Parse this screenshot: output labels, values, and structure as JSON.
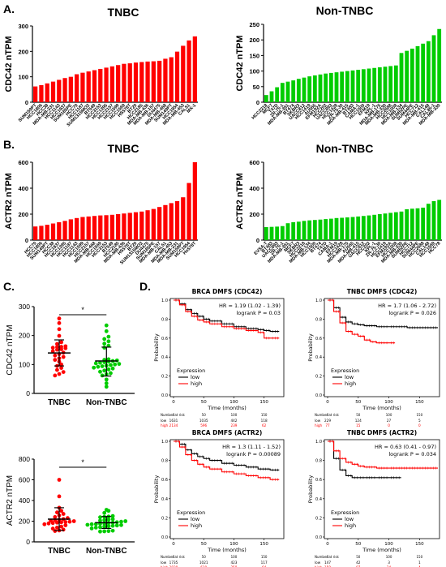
{
  "panels": {
    "A": "A.",
    "B": "B.",
    "C": "C.",
    "D": "D."
  },
  "colors": {
    "tnbc": "#ff0000",
    "non_tnbc": "#00cc00",
    "km_low": "#000000",
    "km_high": "#ff0000"
  },
  "chart_data": [
    {
      "id": "A-tnbc",
      "type": "bar",
      "title": "TNBC",
      "ylabel": "CDC42 nTPM",
      "ylim": [
        0,
        300
      ],
      "yticks": [
        0,
        100,
        200,
        300
      ],
      "color": "#ff0000",
      "categories": [
        "SUM159PT",
        "HCC1806",
        "HCC38",
        "MDA-MB-231",
        "HCC1143",
        "HCC1937",
        "SUM185PE",
        "HCC70",
        "HCC1187",
        "SUM1315MO2",
        "BT549",
        "HCC3153",
        "HCC1395",
        "HCC2157",
        "HCC1599",
        "HCC1569",
        "HS578T",
        "BT20",
        "HCC2185",
        "MDA-MB-436",
        "MDA-MB-157",
        "DU4475",
        "MDA-MB-468",
        "SUM149PT",
        "HCC1954",
        "MDA-MB-453",
        "CAL51",
        "MX-1"
      ],
      "values": [
        62,
        67,
        74,
        81,
        88,
        95,
        100,
        110,
        116,
        121,
        126,
        131,
        136,
        141,
        146,
        151,
        153,
        156,
        158,
        160,
        161,
        163,
        171,
        177,
        199,
        222,
        243,
        259
      ]
    },
    {
      "id": "A-nontnbc",
      "type": "bar",
      "title": "Non-TNBC",
      "ylabel": "CDC42 nTPM",
      "ylim": [
        0,
        250
      ],
      "yticks": [
        0,
        50,
        100,
        150,
        200,
        250
      ],
      "color": "#00cc00",
      "categories": [
        "HCC2218",
        "MCF7",
        "T47D",
        "ZR-75-1",
        "MDA-MB-361",
        "BT474",
        "SKBR3",
        "UACC812",
        "HCC1419",
        "AU565",
        "EFM192A",
        "HCC202",
        "UACC893",
        "HCC1428",
        "ZR-75-30",
        "MDA-MB-415",
        "BT483",
        "CAMA-1",
        "HCC1500",
        "EFM19",
        "KPL-1",
        "MDA-MB-175",
        "MDA-MB-330",
        "HCC2688",
        "HCC1008",
        "MDA-MB-134",
        "SUM52PE",
        "SUM44PE",
        "HCC712",
        "MDA-MB-415",
        "CAL148",
        "CAL85-1",
        "MDA-MB-330"
      ],
      "values": [
        23,
        35,
        48,
        62,
        66,
        70,
        75,
        79,
        83,
        86,
        89,
        92,
        94,
        96,
        98,
        100,
        102,
        104,
        106,
        108,
        110,
        112,
        114,
        116,
        118,
        158,
        165,
        172,
        180,
        188,
        196,
        215,
        235
      ]
    },
    {
      "id": "B-tnbc",
      "type": "bar",
      "title": "TNBC",
      "ylabel": "ACTR2 nTPM",
      "ylim": [
        0,
        600
      ],
      "yticks": [
        0,
        200,
        400,
        600
      ],
      "color": "#ff0000",
      "categories": [
        "HCC70",
        "HCC1806",
        "SUM149PT",
        "HCC38",
        "HCC1937",
        "HCC1395",
        "HCC1187",
        "HCC1143",
        "HCC1599",
        "HCC2157",
        "MDA-MB-468",
        "HCC1569",
        "HCC3153",
        "BT549",
        "HCC2185",
        "MDA-MB-436",
        "HS578T",
        "BT20",
        "SUM1315MO2",
        "DU4475",
        "SUM185PE",
        "MDA-MB-157",
        "CAL51",
        "MDA-MB-453",
        "MDA-MB-231",
        "SUM159PT",
        "HCC1954",
        "Hs578T"
      ],
      "values": [
        105,
        110,
        118,
        128,
        138,
        148,
        160,
        170,
        178,
        182,
        186,
        190,
        192,
        195,
        200,
        205,
        210,
        215,
        220,
        230,
        240,
        255,
        270,
        285,
        300,
        330,
        440,
        600
      ]
    },
    {
      "id": "B-nontnbc",
      "type": "bar",
      "title": "Non-TNBC",
      "ylabel": "ACTR2 nTPM",
      "ylim": [
        0,
        600
      ],
      "yticks": [
        0,
        200,
        400,
        600
      ],
      "color": "#00cc00",
      "categories": [
        "EVSA-T",
        "BT483",
        "UACC893",
        "ZR-75-1",
        "MDA-MB-361",
        "MCF7",
        "SKBR3",
        "HCC2218",
        "MDA-MB-134",
        "HCC1500",
        "BT474",
        "T47D",
        "CAMA-1",
        "EFM19",
        "HCC1428",
        "MDA-MB-175",
        "AU565",
        "MDA-MB-415",
        "UACC812",
        "HCC202",
        "KPL-1",
        "ZR-75-30",
        "HCC1419",
        "EFM192A",
        "HCC1008",
        "MDA-MB-330",
        "SUM52PE",
        "HCC712",
        "SUM44PE",
        "HCC2688",
        "CAL148",
        "HCC1569",
        "HCC78"
      ],
      "values": [
        100,
        102,
        104,
        108,
        130,
        138,
        142,
        148,
        152,
        155,
        158,
        162,
        165,
        170,
        172,
        175,
        178,
        182,
        186,
        190,
        195,
        200,
        205,
        210,
        215,
        220,
        238,
        242,
        245,
        250,
        280,
        300,
        310
      ]
    },
    {
      "id": "C-cdc42",
      "type": "scatter",
      "ylabel": "CDC42 nTPM",
      "ylim": [
        0,
        300
      ],
      "yticks": [
        0,
        100,
        200,
        300
      ],
      "categories": [
        "TNBC",
        "Non-TNBC"
      ],
      "significance": "*",
      "groups": [
        {
          "name": "TNBC",
          "color": "#ff0000",
          "mean": 140,
          "sd_low": 95,
          "sd_high": 185,
          "values": [
            62,
            67,
            74,
            81,
            88,
            95,
            100,
            110,
            116,
            121,
            126,
            131,
            136,
            141,
            146,
            151,
            153,
            156,
            158,
            160,
            161,
            163,
            171,
            177,
            199,
            222,
            243,
            259
          ]
        },
        {
          "name": "Non-TNBC",
          "color": "#00cc00",
          "mean": 112,
          "sd_low": 60,
          "sd_high": 160,
          "values": [
            23,
            35,
            48,
            62,
            66,
            70,
            75,
            79,
            83,
            86,
            89,
            92,
            94,
            96,
            98,
            100,
            102,
            104,
            106,
            108,
            110,
            112,
            114,
            116,
            118,
            158,
            165,
            172,
            180,
            188,
            196,
            215,
            235
          ]
        }
      ]
    },
    {
      "id": "C-actr2",
      "type": "scatter",
      "ylabel": "ACTR2 nTPM",
      "ylim": [
        0,
        800
      ],
      "yticks": [
        0,
        200,
        400,
        600,
        800
      ],
      "categories": [
        "TNBC",
        "Non-TNBC"
      ],
      "significance": "*",
      "groups": [
        {
          "name": "TNBC",
          "color": "#ff0000",
          "mean": 220,
          "sd_low": 110,
          "sd_high": 330,
          "values": [
            105,
            110,
            118,
            128,
            138,
            148,
            160,
            170,
            178,
            182,
            186,
            190,
            192,
            195,
            200,
            205,
            210,
            215,
            220,
            230,
            240,
            255,
            270,
            285,
            300,
            330,
            440,
            600
          ]
        },
        {
          "name": "Non-TNBC",
          "color": "#00cc00",
          "mean": 185,
          "sd_low": 130,
          "sd_high": 245,
          "values": [
            100,
            102,
            104,
            108,
            130,
            138,
            142,
            148,
            152,
            155,
            158,
            162,
            165,
            170,
            172,
            175,
            178,
            182,
            186,
            190,
            195,
            200,
            205,
            210,
            215,
            220,
            238,
            242,
            245,
            250,
            280,
            300,
            310
          ]
        }
      ]
    },
    {
      "id": "D-brca-cdc42",
      "type": "line",
      "title": "BRCA DMFS (CDC42)",
      "ylabel": "Probability",
      "xlabel": "Time (months)",
      "xlim": [
        0,
        180
      ],
      "ylim": [
        0,
        1
      ],
      "xticks": [
        0,
        50,
        100,
        150
      ],
      "yticks": [
        "0.0",
        "0.2",
        "0.4",
        "0.6",
        "0.8",
        "1.0"
      ],
      "hr_text": "HR = 1.19 (1.02 - 1.39)",
      "p_text": "logrank P = 0.03",
      "legend_title": "Expression",
      "series": [
        {
          "name": "low",
          "color": "#000000",
          "x": [
            0,
            10,
            20,
            30,
            40,
            50,
            60,
            80,
            100,
            120,
            140,
            150,
            160,
            175
          ],
          "y": [
            1,
            0.96,
            0.9,
            0.86,
            0.83,
            0.8,
            0.78,
            0.75,
            0.72,
            0.7,
            0.69,
            0.68,
            0.67,
            0.67
          ]
        },
        {
          "name": "high",
          "color": "#ff0000",
          "x": [
            0,
            10,
            20,
            30,
            40,
            50,
            60,
            80,
            100,
            120,
            140,
            150,
            160,
            175
          ],
          "y": [
            1,
            0.95,
            0.88,
            0.83,
            0.79,
            0.77,
            0.75,
            0.72,
            0.7,
            0.68,
            0.66,
            0.6,
            0.6,
            0.6
          ]
        }
      ],
      "risk_header": "Number at risk",
      "risk_ticks": [
        "0",
        "50",
        "100",
        "150"
      ],
      "risk": [
        {
          "label": "low",
          "values": [
            "1631",
            "1035",
            "442",
            "118"
          ]
        },
        {
          "label": "high",
          "values": [
            "2134",
            "596",
            "239",
            "62"
          ]
        }
      ]
    },
    {
      "id": "D-tnbc-cdc42",
      "type": "line",
      "title": "TNBC DMFS (CDC42)",
      "ylabel": "Probability",
      "xlabel": "Time (months)",
      "xlim": [
        0,
        180
      ],
      "ylim": [
        0,
        1
      ],
      "xticks": [
        0,
        50,
        100,
        150
      ],
      "yticks": [
        "0.0",
        "0.2",
        "0.4",
        "0.6",
        "0.8",
        "1.0"
      ],
      "hr_text": "HR = 1.7 (1.06 - 2.72)",
      "p_text": "logrank P = 0.026",
      "legend_title": "Expression",
      "series": [
        {
          "name": "low",
          "color": "#000000",
          "x": [
            0,
            10,
            20,
            30,
            40,
            50,
            60,
            80,
            100,
            130,
            160,
            180
          ],
          "y": [
            1,
            0.92,
            0.82,
            0.77,
            0.75,
            0.74,
            0.73,
            0.72,
            0.72,
            0.71,
            0.71,
            0.71
          ]
        },
        {
          "name": "high",
          "color": "#ff0000",
          "x": [
            0,
            10,
            20,
            30,
            40,
            50,
            60,
            70,
            80,
            100,
            110
          ],
          "y": [
            1,
            0.88,
            0.76,
            0.67,
            0.64,
            0.62,
            0.58,
            0.56,
            0.55,
            0.55,
            0.55
          ]
        }
      ],
      "risk_header": "Number at risk",
      "risk_ticks": [
        "0",
        "50",
        "100",
        "150"
      ],
      "risk": [
        {
          "label": "low",
          "values": [
            "229",
            "124",
            "27",
            "5"
          ]
        },
        {
          "label": "high",
          "values": [
            "77",
            "15",
            "0",
            "0"
          ]
        }
      ]
    },
    {
      "id": "D-brca-actr2",
      "type": "line",
      "title": "BRCA DMFS (ACTR2)",
      "ylabel": "Probability",
      "xlabel": "Time (months)",
      "xlim": [
        0,
        180
      ],
      "ylim": [
        0,
        1
      ],
      "xticks": [
        0,
        50,
        100,
        150
      ],
      "yticks": [
        "0.0",
        "0.2",
        "0.4",
        "0.6",
        "0.8",
        "1.0"
      ],
      "hr_text": "HR = 1.3 (1.11 - 1.52)",
      "p_text": "logrank P = 0.00089",
      "legend_title": "Expression",
      "series": [
        {
          "name": "low",
          "color": "#000000",
          "x": [
            0,
            10,
            20,
            30,
            40,
            50,
            60,
            80,
            100,
            120,
            140,
            160,
            175
          ],
          "y": [
            1,
            0.97,
            0.91,
            0.87,
            0.84,
            0.82,
            0.8,
            0.77,
            0.75,
            0.73,
            0.71,
            0.7,
            0.7
          ]
        },
        {
          "name": "high",
          "color": "#ff0000",
          "x": [
            0,
            10,
            20,
            30,
            40,
            50,
            60,
            80,
            100,
            120,
            140,
            160,
            175
          ],
          "y": [
            1,
            0.94,
            0.86,
            0.8,
            0.76,
            0.73,
            0.71,
            0.68,
            0.66,
            0.64,
            0.62,
            0.6,
            0.6
          ]
        }
      ],
      "risk_header": "Number at risk",
      "risk_ticks": [
        "0",
        "50",
        "100",
        "150"
      ],
      "risk": [
        {
          "label": "low",
          "values": [
            "1735",
            "1021",
            "423",
            "117"
          ]
        },
        {
          "label": "high",
          "values": [
            "2030",
            "610",
            "258",
            "64"
          ]
        }
      ]
    },
    {
      "id": "D-tnbc-actr2",
      "type": "line",
      "title": "TNBC DMFS (ACTR2)",
      "ylabel": "Probability",
      "xlabel": "Time (months)",
      "xlim": [
        0,
        180
      ],
      "ylim": [
        0,
        1
      ],
      "xticks": [
        0,
        50,
        100,
        150
      ],
      "yticks": [
        "0.0",
        "0.2",
        "0.4",
        "0.6",
        "0.8",
        "1.0"
      ],
      "hr_text": "HR = 0.63 (0.41 - 0.97)",
      "p_text": "logrank P = 0.034",
      "legend_title": "Expression",
      "series": [
        {
          "name": "low",
          "color": "#000000",
          "x": [
            0,
            10,
            20,
            30,
            40,
            50,
            60,
            80,
            100,
            120
          ],
          "y": [
            1,
            0.82,
            0.7,
            0.64,
            0.62,
            0.62,
            0.62,
            0.62,
            0.62,
            0.62
          ]
        },
        {
          "name": "high",
          "color": "#ff0000",
          "x": [
            0,
            10,
            20,
            30,
            40,
            50,
            60,
            80,
            100,
            130,
            160,
            180
          ],
          "y": [
            1,
            0.9,
            0.82,
            0.78,
            0.76,
            0.74,
            0.73,
            0.72,
            0.72,
            0.72,
            0.72,
            0.72
          ]
        }
      ],
      "risk_header": "Number at risk",
      "risk_ticks": [
        "0",
        "50",
        "100",
        "150"
      ],
      "risk": [
        {
          "label": "low",
          "values": [
            "147",
            "42",
            "3",
            "1"
          ]
        },
        {
          "label": "high",
          "values": [
            "159",
            "97",
            "24",
            "4"
          ]
        }
      ]
    }
  ]
}
